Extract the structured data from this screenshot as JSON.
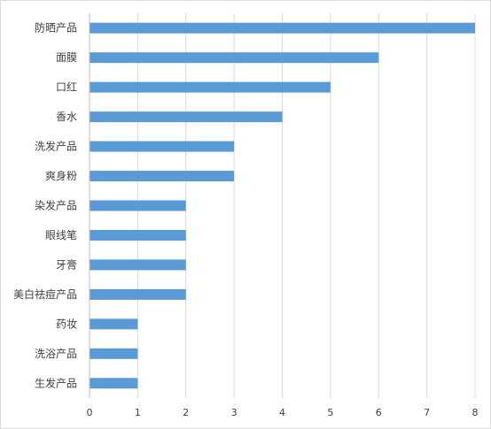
{
  "chart_data": {
    "type": "bar",
    "orientation": "horizontal",
    "title": "",
    "xlabel": "",
    "ylabel": "",
    "categories": [
      "防晒产品",
      "面膜",
      "口红",
      "香水",
      "洗发产品",
      "爽身粉",
      "染发产品",
      "眼线笔",
      "牙膏",
      "美白祛痘产品",
      "药妆",
      "洗浴产品",
      "生发产品"
    ],
    "values": [
      8,
      6,
      5,
      4,
      3,
      3,
      2,
      2,
      2,
      2,
      1,
      1,
      1
    ],
    "xlim": [
      0,
      8
    ],
    "xticks": [
      "0",
      "1",
      "2",
      "3",
      "4",
      "5",
      "6",
      "7",
      "8"
    ],
    "grid": "vertical",
    "legend": "none",
    "bar_color": "#5b9bd5",
    "grid_color": "#d9d9d9"
  }
}
